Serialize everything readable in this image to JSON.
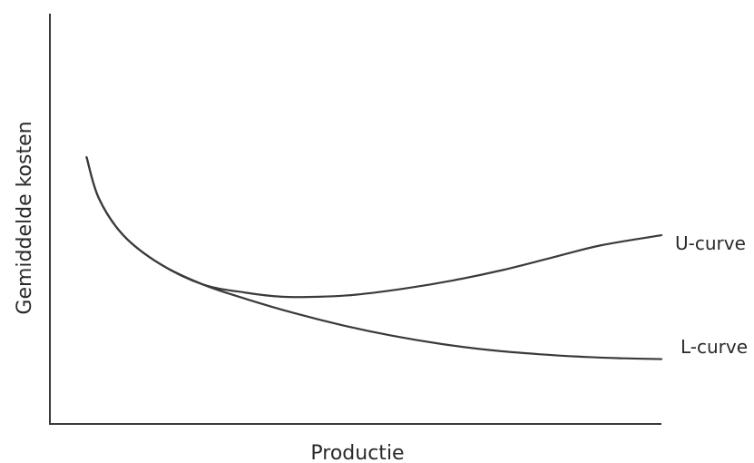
{
  "chart_data": {
    "type": "line",
    "title": "",
    "xlabel": "Productie",
    "ylabel": "Gemiddelde kosten",
    "ticks": "none",
    "grid": false,
    "xlim": [
      0,
      100
    ],
    "ylim": [
      0,
      100
    ],
    "series": [
      {
        "name": "U-curve",
        "x": [
          6,
          8,
          12,
          18,
          25,
          32,
          38,
          44,
          50,
          58,
          66,
          74,
          82,
          90,
          100
        ],
        "y": [
          65,
          55,
          46,
          39,
          34,
          32,
          31,
          31,
          31.5,
          33,
          35,
          37.5,
          40.5,
          43.5,
          46
        ]
      },
      {
        "name": "L-curve",
        "x": [
          6,
          8,
          12,
          18,
          25,
          32,
          40,
          48,
          56,
          64,
          72,
          80,
          88,
          94,
          100
        ],
        "y": [
          65,
          55,
          46,
          39,
          34,
          30.5,
          27,
          24,
          21.5,
          19.5,
          18,
          17,
          16.3,
          16,
          15.8
        ]
      }
    ]
  }
}
